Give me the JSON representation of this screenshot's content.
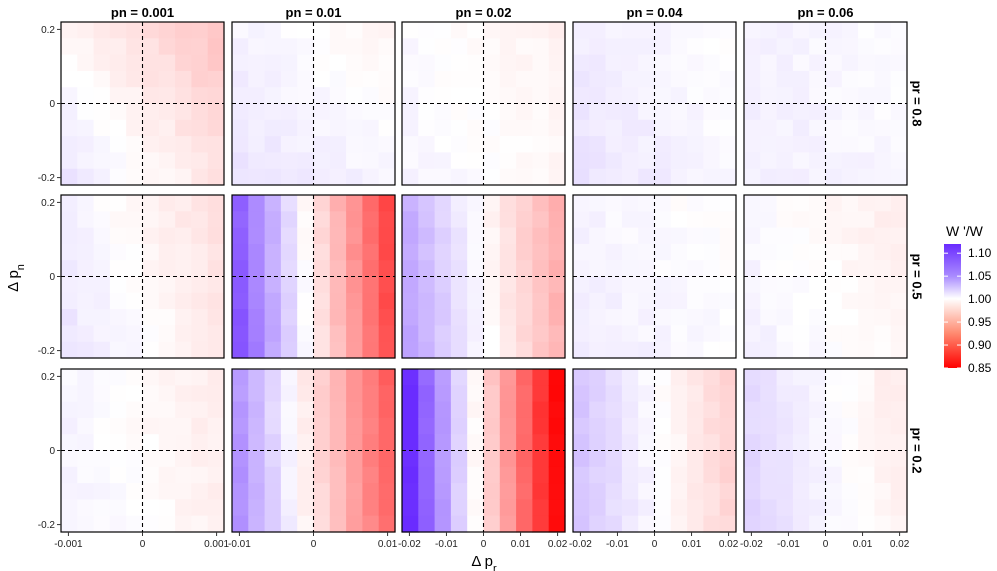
{
  "chart_data": {
    "type": "heatmap",
    "xlabel": "Δ p_r",
    "ylabel": "Δ p_n",
    "column_facets": [
      "pn = 0.001",
      "pn = 0.01",
      "pn = 0.02",
      "pn = 0.04",
      "pn = 0.06"
    ],
    "row_facets": [
      "pr = 0.8",
      "pr = 0.5",
      "pr = 0.2"
    ],
    "x_ticks": [
      [
        "-0.001",
        "0",
        "0.001"
      ],
      [
        "-0.01",
        "0",
        "0.01"
      ],
      [
        "-0.02",
        "-0.01",
        "0",
        "0.01",
        "0.02"
      ],
      [
        "-0.02",
        "-0.01",
        "0",
        "0.01",
        "0.02"
      ],
      [
        "-0.02",
        "-0.01",
        "0",
        "0.01",
        "0.02"
      ]
    ],
    "x_tick_values": [
      [
        -0.001,
        0,
        0.001
      ],
      [
        -0.01,
        0,
        0.01
      ],
      [
        -0.02,
        -0.01,
        0,
        0.01,
        0.02
      ],
      [
        -0.02,
        -0.01,
        0,
        0.01,
        0.02
      ],
      [
        -0.02,
        -0.01,
        0,
        0.01,
        0.02
      ]
    ],
    "x_ranges": [
      [
        -0.0011,
        0.0011
      ],
      [
        -0.011,
        0.011
      ],
      [
        -0.022,
        0.022
      ],
      [
        -0.022,
        0.022
      ],
      [
        -0.022,
        0.022
      ]
    ],
    "y_ticks": [
      "0.2",
      "0",
      "-0.2"
    ],
    "y_tick_values": [
      0.2,
      0,
      -0.2
    ],
    "y_range": [
      -0.22,
      0.22
    ],
    "grid_size": 10,
    "reference_lines": {
      "x": 0,
      "y": 0
    },
    "legend": {
      "title": "W '/W",
      "ticks": [
        "1.10",
        "1.05",
        "1.00",
        "0.95",
        "0.90",
        "0.85"
      ],
      "tick_values": [
        1.1,
        1.05,
        1.0,
        0.95,
        0.9,
        0.85
      ],
      "range": [
        0.85,
        1.12
      ],
      "placement": "right"
    },
    "colors": {
      "low": "#ff0000",
      "mid": "#ffffff",
      "high": "#6a2cff"
    },
    "panels": [
      [
        {
          "left": 1.005,
          "right": 0.975,
          "top": 0.985,
          "bottom": 1.015
        },
        {
          "left": 1.01,
          "right": 1.0,
          "top": 0.997,
          "bottom": 1.013
        },
        {
          "left": 1.004,
          "right": 0.994,
          "top": 0.996,
          "bottom": 1.002
        },
        {
          "left": 1.012,
          "right": 1.002,
          "top": 1.003,
          "bottom": 1.011
        },
        {
          "left": 1.008,
          "right": 1.003,
          "top": 1.004,
          "bottom": 1.007
        }
      ],
      [
        {
          "left": 1.01,
          "right": 0.985,
          "top": 0.992,
          "bottom": 1.004
        },
        {
          "left": 1.085,
          "right": 0.895,
          "top": 0.99,
          "bottom": 1.0
        },
        {
          "left": 1.045,
          "right": 0.955,
          "top": 0.995,
          "bottom": 1.005
        },
        {
          "left": 1.008,
          "right": 1.0,
          "top": 1.001,
          "bottom": 1.008
        },
        {
          "left": 1.005,
          "right": 0.992,
          "top": 0.995,
          "bottom": 1.004
        }
      ],
      [
        {
          "left": 1.006,
          "right": 0.99,
          "top": 0.998,
          "bottom": 1.002
        },
        {
          "left": 1.055,
          "right": 0.91,
          "top": 0.98,
          "bottom": 0.99
        },
        {
          "left": 1.11,
          "right": 0.855,
          "top": 0.985,
          "bottom": 0.99
        },
        {
          "left": 1.03,
          "right": 0.975,
          "top": 1.0,
          "bottom": 1.004
        },
        {
          "left": 1.02,
          "right": 0.99,
          "top": 1.002,
          "bottom": 1.008
        }
      ]
    ]
  }
}
